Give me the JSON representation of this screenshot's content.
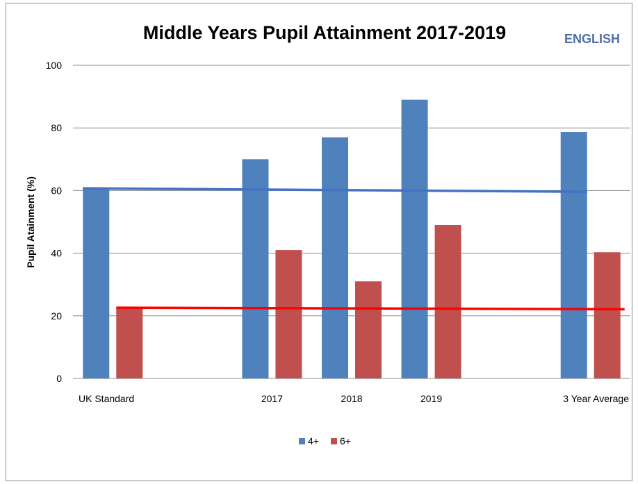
{
  "chart_data": {
    "type": "bar",
    "title": "Middle Years Pupil Attainment 2017-2019",
    "subject_label": "ENGLISH",
    "xlabel": "",
    "ylabel": "Pupil Atainment (%)",
    "ylim": [
      0,
      100
    ],
    "yticks": [
      0,
      20,
      40,
      60,
      80,
      100
    ],
    "grid": "horizontal",
    "legend_position": "bottom",
    "categories": [
      "UK Standard",
      "",
      "2017",
      "2018",
      "2019",
      "",
      "3 Year Average"
    ],
    "series": [
      {
        "name": "4+",
        "color": "#4F81BD",
        "values": [
          61,
          null,
          70,
          77,
          89,
          null,
          78.7
        ]
      },
      {
        "name": "6+",
        "color": "#C0504D",
        "values": [
          22.5,
          null,
          41,
          31,
          49,
          null,
          40.3
        ]
      }
    ],
    "trendlines": [
      {
        "series": "4+",
        "color": "#4472C4",
        "start": 60.7,
        "end": 59.6
      },
      {
        "series": "6+",
        "color": "#FF0000",
        "start": 22.6,
        "end": 22.1
      }
    ],
    "colors": {
      "subject": "#4F6FA8",
      "grid": "#8c8c8c",
      "frame": "#8c8c8c"
    }
  }
}
